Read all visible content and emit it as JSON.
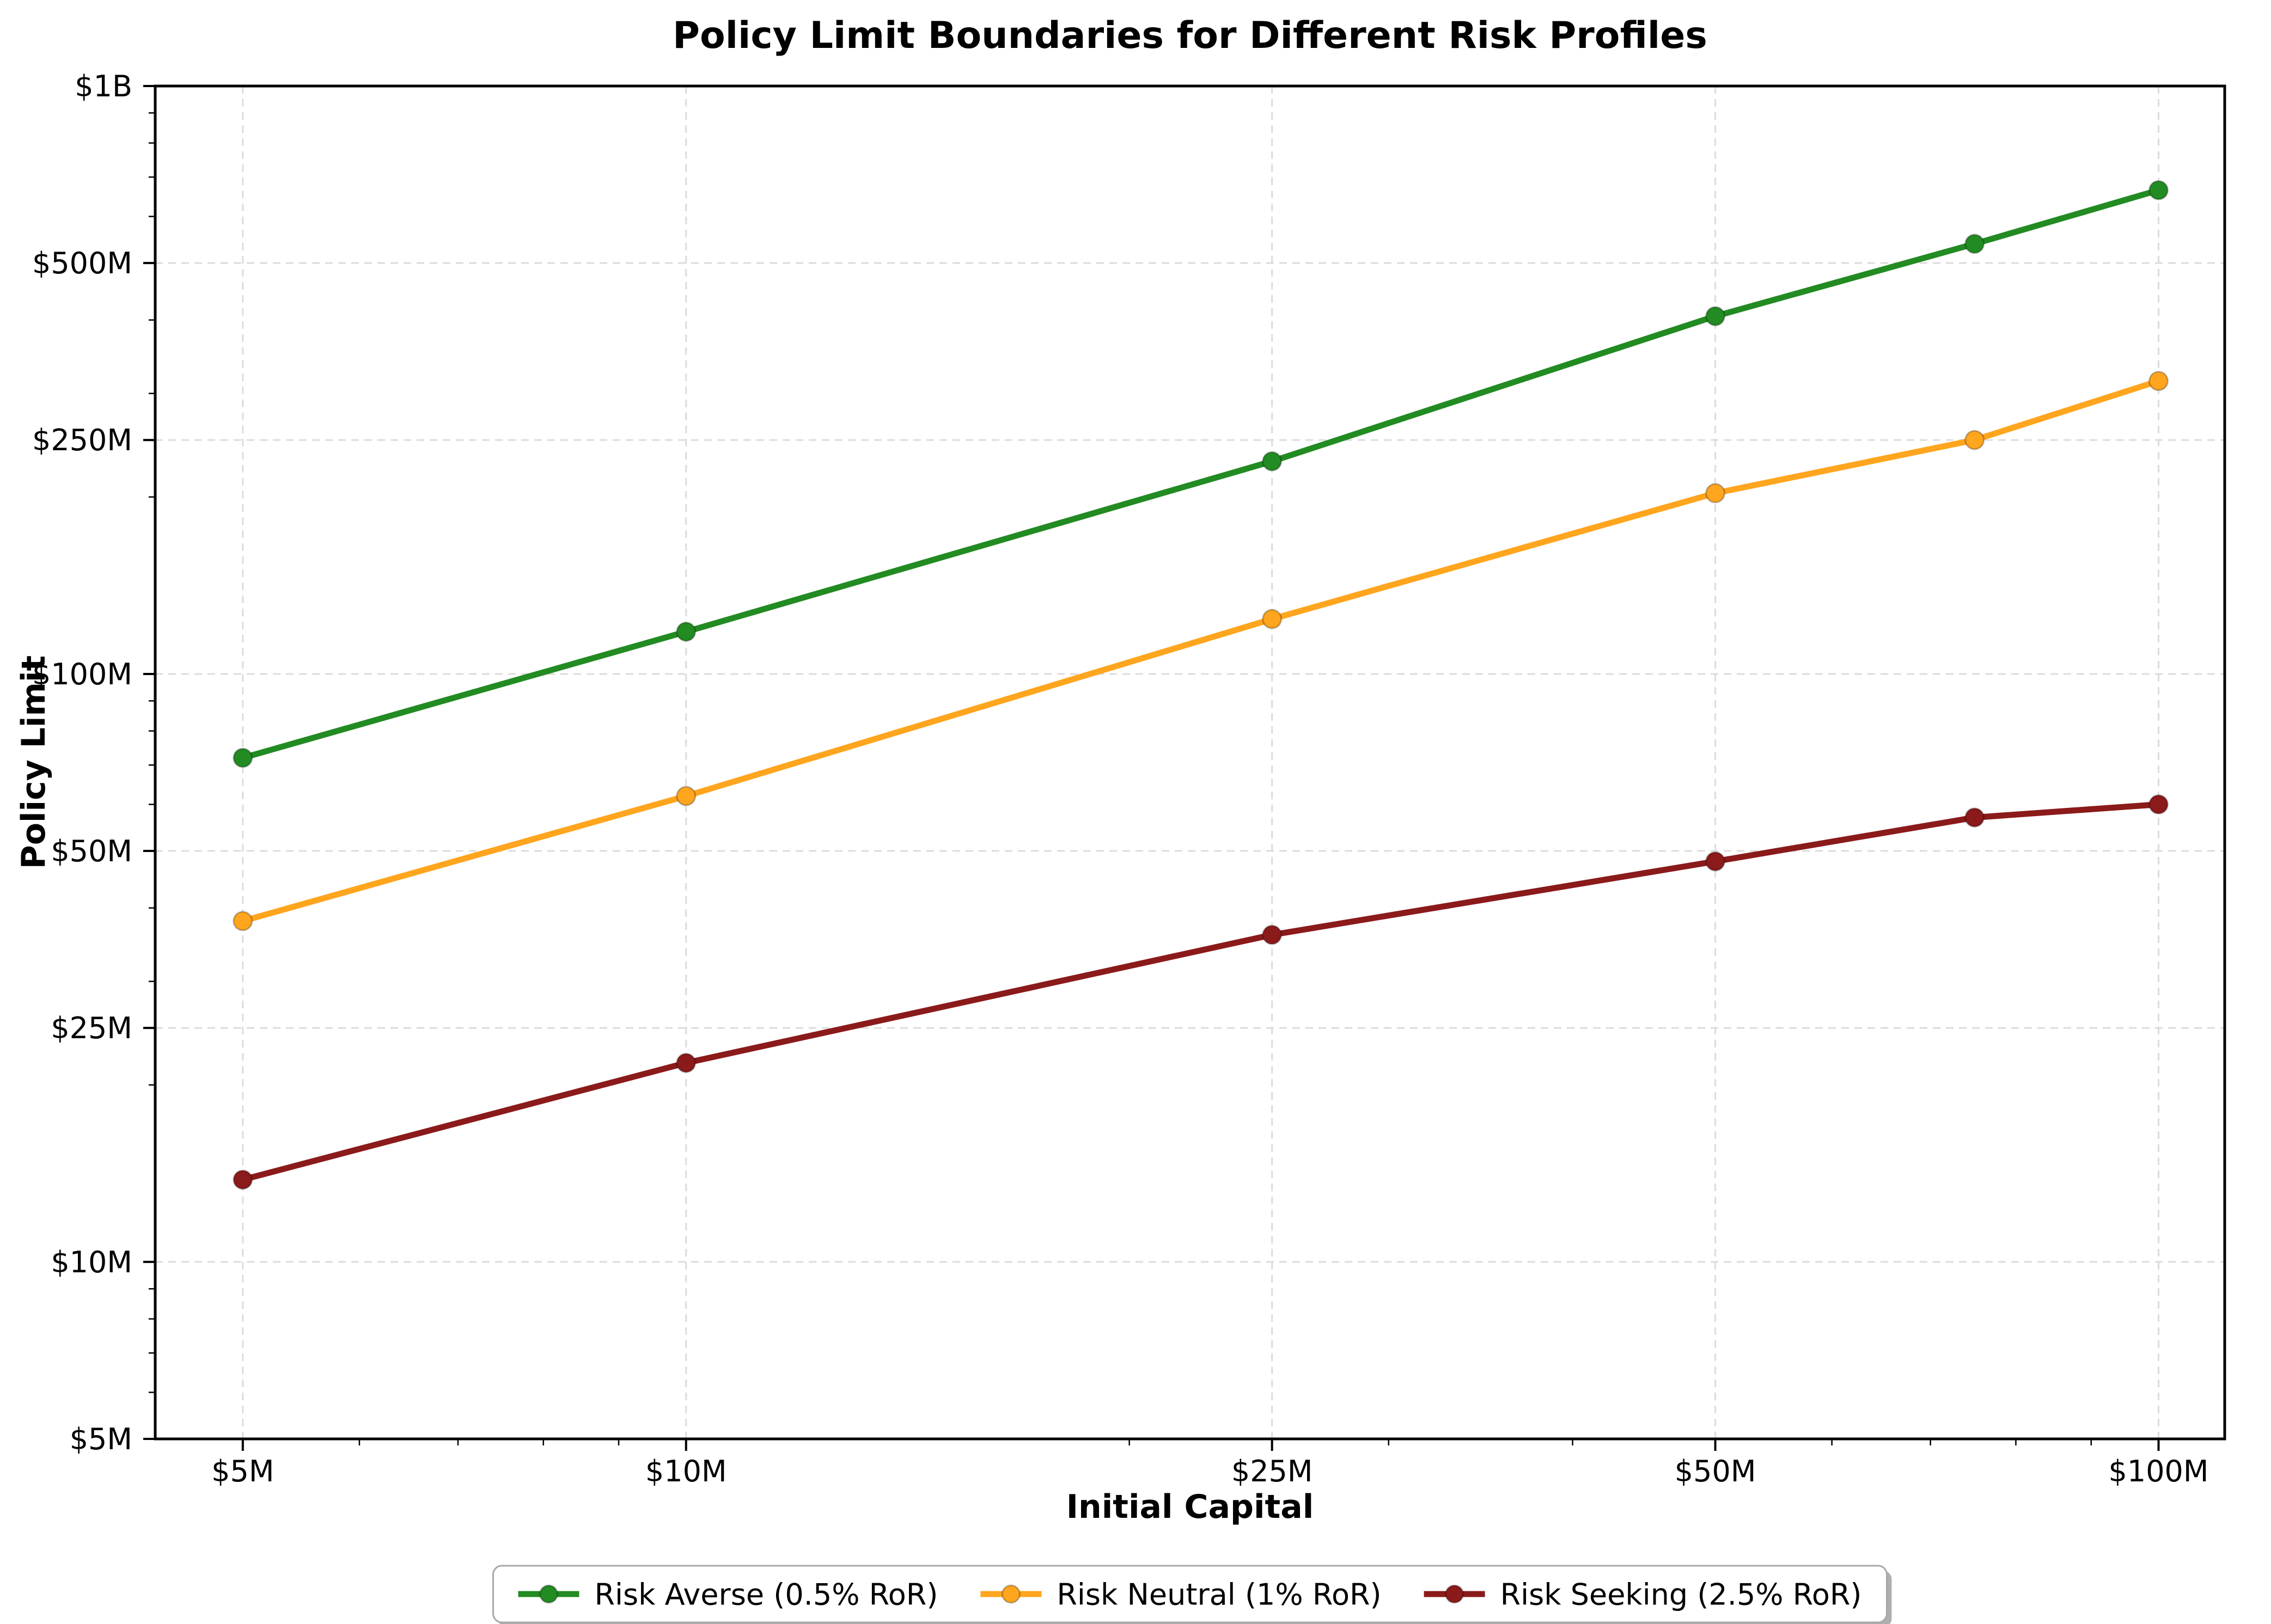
{
  "chart_data": {
    "type": "line",
    "title": "Policy Limit Boundaries for Different Risk Profiles",
    "xlabel": "Initial Capital",
    "ylabel": "Policy Limit",
    "x_scale": "log",
    "y_scale": "log",
    "units": "millions_usd",
    "x": [
      5,
      10,
      25,
      50,
      75,
      100
    ],
    "series": [
      {
        "name": "Risk Averse (0.5% RoR)",
        "color": "#228B22",
        "values": [
          72,
          118,
          230,
          406,
          539,
          665
        ]
      },
      {
        "name": "Risk Neutral (1% RoR)",
        "color": "#FFA51E",
        "values": [
          38,
          62,
          124,
          203,
          250,
          315
        ]
      },
      {
        "name": "Risk Seeking (2.5% RoR)",
        "color": "#8B1A1A",
        "values": [
          13.8,
          21.8,
          36,
          48,
          57,
          60
        ]
      }
    ],
    "x_ticks": [
      {
        "value": 5,
        "label": "$5M"
      },
      {
        "value": 10,
        "label": "$10M"
      },
      {
        "value": 25,
        "label": "$25M"
      },
      {
        "value": 50,
        "label": "$50M"
      },
      {
        "value": 100,
        "label": "$100M"
      }
    ],
    "y_ticks": [
      {
        "value": 5,
        "label": "$5M"
      },
      {
        "value": 10,
        "label": "$10M"
      },
      {
        "value": 25,
        "label": "$25M"
      },
      {
        "value": 50,
        "label": "$50M"
      },
      {
        "value": 100,
        "label": "$100M"
      },
      {
        "value": 250,
        "label": "$250M"
      },
      {
        "value": 500,
        "label": "$500M"
      },
      {
        "value": 1000,
        "label": "$1B"
      }
    ],
    "xlim": [
      4.36,
      110.9
    ],
    "ylim": [
      5,
      1000
    ],
    "grid": "dashed-major-only",
    "grid_color": "#DCDCDC",
    "spine_color": "#000000",
    "legend_position": "bottom-center",
    "marker": "circle",
    "line_width": 11,
    "marker_radius": 17
  }
}
